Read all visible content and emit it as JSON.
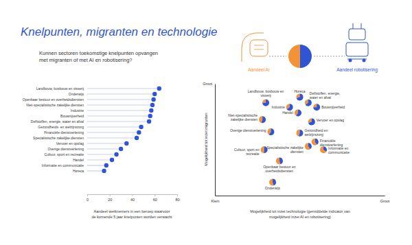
{
  "header": {
    "title": "Knelpunten, migranten en technologie",
    "subtitle": "Kunnen sectoren toekomstige knelpunten opvangen met migranten of met AI en robotisering?"
  },
  "chart_data": [
    {
      "type": "lollipop",
      "orientation": "horizontal",
      "categories": [
        "Landbouw, bosbouw en visserij",
        "Onderwijs",
        "Openbaar bestuur en overheidsdiensten",
        "Niet-specialistische zakelijke diensten",
        "Industrie",
        "Bouwnijverheid",
        "Delfstoffen, energie, water en afval",
        "Gezondheids- en welzijnszorg",
        "Financiële dienstverlening",
        "Specialistische zakelijke diensten",
        "Vervoer en opslag",
        "Overige dienstverlening",
        "Cultuur, sport en recreatie",
        "Handel",
        "Informatie en communicatie",
        "Horeca"
      ],
      "values": [
        64,
        60,
        59,
        58,
        57,
        56,
        55,
        48,
        46,
        44,
        35,
        30,
        26,
        22,
        17,
        15
      ],
      "color": "#2f55d4",
      "xlim": [
        0,
        80
      ],
      "xticks": [
        0,
        20,
        40,
        60,
        80
      ],
      "x_label": "Aandeel werknemers in een beroep waarvoor de komende 5 jaar knelpunten worden verwacht",
      "grid": false
    },
    {
      "type": "scatter",
      "marker": "pie",
      "labels": [
        "Landbouw, bosbouw en visserij",
        "Horeca",
        "Industrie",
        "Delfstoffen, energie, water en afval",
        "Bouwnijverheid",
        "Handel",
        "Niet-specialistische zakelijke diensten",
        "Vervoer en opslag",
        "Overige dienstverlening",
        "Gezondheid en welzijnszorg",
        "Financiële dienstverlening",
        "Cultuur, sport en recreatie",
        "Specialistische zakelijke diensten",
        "Informatie en communicatie",
        "Openbaar bestuur en overheidsdiensten",
        "Onderwijs"
      ],
      "x": [
        30,
        50,
        44,
        55,
        60,
        49,
        28,
        57,
        33,
        50,
        59,
        29,
        55,
        64,
        38,
        34
      ],
      "y": [
        83,
        88,
        79,
        83,
        79,
        74,
        68,
        66,
        57,
        56,
        48,
        41,
        44,
        41,
        31,
        12
      ],
      "series": [
        {
          "name": "Aandeel AI",
          "color": "#f39237",
          "values": [
            25,
            30,
            35,
            35,
            25,
            40,
            45,
            30,
            40,
            45,
            60,
            50,
            60,
            65,
            55,
            55
          ]
        },
        {
          "name": "Aandeel robotisering",
          "color": "#2f55d4",
          "values": [
            75,
            70,
            65,
            65,
            75,
            60,
            55,
            70,
            60,
            55,
            40,
            50,
            40,
            35,
            45,
            45
          ]
        }
      ],
      "xlim": [
        0,
        100
      ],
      "ylim": [
        0,
        100
      ],
      "xticks": [
        {
          "value": 0,
          "label": "Klein"
        },
        {
          "value": 100,
          "label": "Groot"
        }
      ],
      "yticks": [
        {
          "value": 100,
          "label": "Groot"
        }
      ],
      "x_label": "Mogelijkheid tot inzet technologie (gemiddelde indicator van mogelijkheid inzet AI en robotisering)",
      "y_label": "Mogelijkheid tot inzet migranten",
      "legend": "top"
    }
  ]
}
